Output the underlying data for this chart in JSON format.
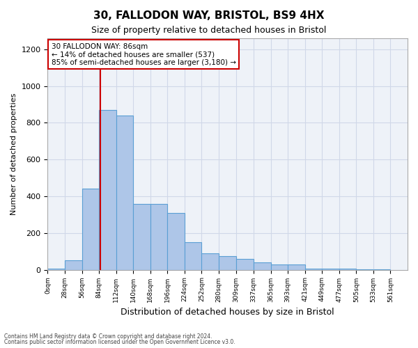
{
  "title1": "30, FALLODON WAY, BRISTOL, BS9 4HX",
  "title2": "Size of property relative to detached houses in Bristol",
  "xlabel": "Distribution of detached houses by size in Bristol",
  "ylabel": "Number of detached properties",
  "bar_left_edges": [
    0,
    28,
    56,
    84,
    112,
    140,
    168,
    196,
    224,
    252,
    280,
    309,
    337,
    365,
    393,
    421,
    449,
    477,
    505,
    533
  ],
  "bar_heights": [
    5,
    50,
    440,
    870,
    840,
    360,
    360,
    310,
    150,
    90,
    75,
    60,
    40,
    30,
    30,
    5,
    5,
    5,
    1,
    1
  ],
  "bin_width": 28,
  "bar_color": "#aec6e8",
  "bar_edge_color": "#5a9fd4",
  "property_line_x": 86,
  "property_line_color": "#cc0000",
  "ylim": [
    0,
    1260
  ],
  "yticks": [
    0,
    200,
    400,
    600,
    800,
    1000,
    1200
  ],
  "xtick_labels": [
    "0sqm",
    "28sqm",
    "56sqm",
    "84sqm",
    "112sqm",
    "140sqm",
    "168sqm",
    "196sqm",
    "224sqm",
    "252sqm",
    "280sqm",
    "309sqm",
    "337sqm",
    "365sqm",
    "393sqm",
    "421sqm",
    "449sqm",
    "477sqm",
    "505sqm",
    "533sqm",
    "561sqm"
  ],
  "annotation_text": "30 FALLODON WAY: 86sqm\n← 14% of detached houses are smaller (537)\n85% of semi-detached houses are larger (3,180) →",
  "annotation_box_color": "#cc0000",
  "grid_color": "#d0d8e8",
  "bg_color": "#eef2f8",
  "footer1": "Contains HM Land Registry data © Crown copyright and database right 2024.",
  "footer2": "Contains public sector information licensed under the Open Government Licence v3.0."
}
